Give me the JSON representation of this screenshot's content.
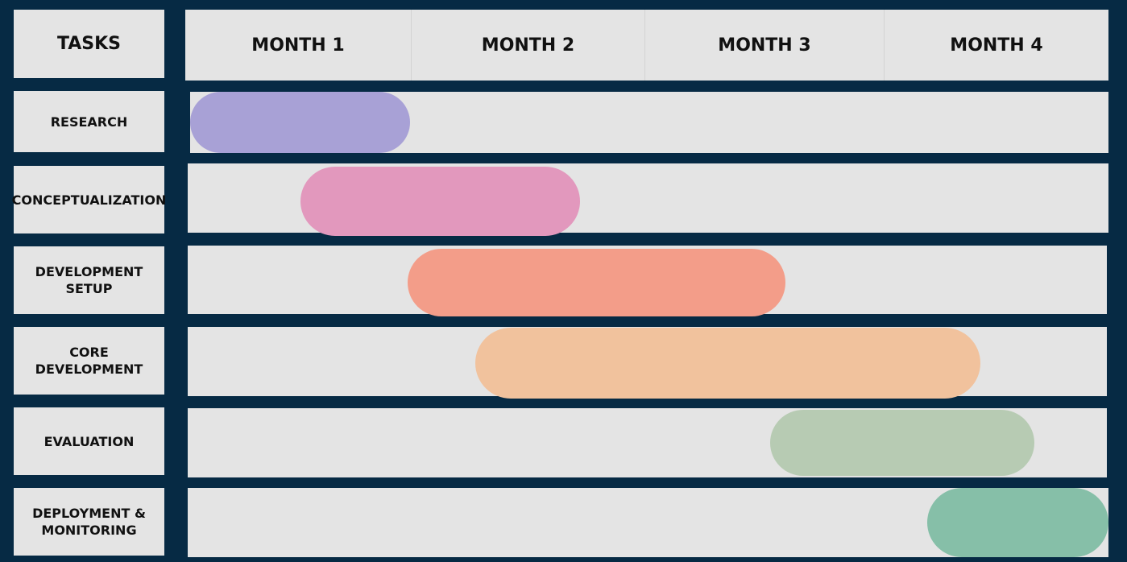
{
  "header": {
    "tasks_label": "TASKS",
    "months": [
      "MONTH 1",
      "MONTH 2",
      "MONTH 3",
      "MONTH 4"
    ]
  },
  "tasks": [
    {
      "label": "RESEARCH",
      "color": "#a8a1d6"
    },
    {
      "label": "CONCEPTUALIZATION",
      "color": "#e298bd"
    },
    {
      "label": "DEVELOPMENT\nSETUP",
      "color": "#f39d89"
    },
    {
      "label": "CORE\nDEVELOPMENT",
      "color": "#f1c29d"
    },
    {
      "label": "EVALUATION",
      "color": "#b7cbb3"
    },
    {
      "label": "DEPLOYMENT &\nMONITORING",
      "color": "#86bfa8"
    }
  ],
  "colors": {
    "background": "#062a44",
    "cell": "#e4e4e4",
    "text": "#111111"
  }
}
